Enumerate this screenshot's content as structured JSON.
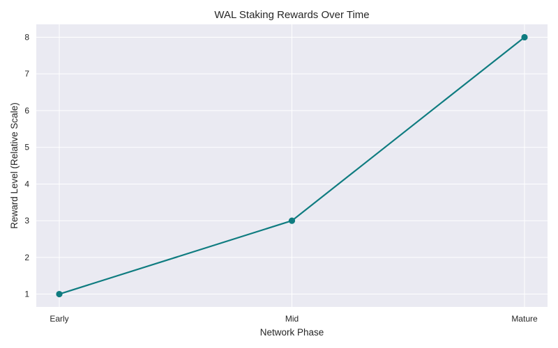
{
  "chart_data": {
    "type": "line",
    "title": "WAL Staking Rewards Over Time",
    "xlabel": "Network Phase",
    "ylabel": "Reward Level (Relative Scale)",
    "categories": [
      "Early",
      "Mid",
      "Mature"
    ],
    "series": [
      {
        "values": [
          1,
          3,
          8
        ],
        "color": "#0f7c80"
      }
    ],
    "ylim": [
      0.65,
      8.35
    ],
    "yticks": [
      1,
      2,
      3,
      4,
      5,
      6,
      7,
      8
    ],
    "grid": true,
    "legend": "none",
    "colors": {
      "plot_background": "#eaeaf2",
      "grid": "#ffffff",
      "line": "#0f7c80"
    }
  }
}
